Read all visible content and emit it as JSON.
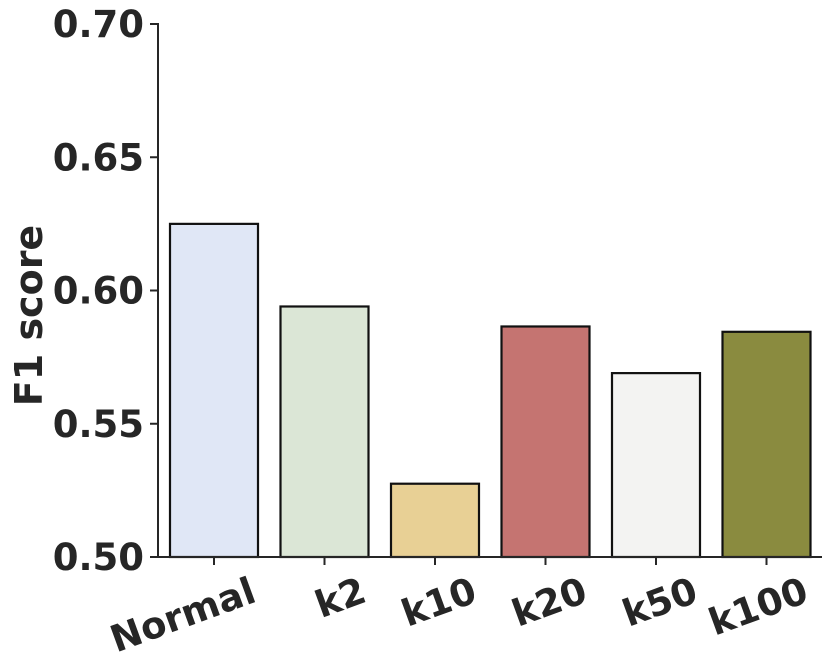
{
  "chart_data": {
    "type": "bar",
    "categories": [
      "Normal",
      "k2",
      "k10",
      "k20",
      "k50",
      "k100"
    ],
    "values": [
      0.625,
      0.594,
      0.5275,
      0.5865,
      0.569,
      0.5845
    ],
    "colors": [
      "#e0e7f6",
      "#dbe6d6",
      "#e8d095",
      "#c57471",
      "#f3f3f2",
      "#8a8b3f"
    ],
    "title": "",
    "xlabel": "",
    "ylabel": "F1 score",
    "ylim": [
      0.5,
      0.7
    ],
    "yticks": [
      "0.50",
      "0.55",
      "0.60",
      "0.65",
      "0.70"
    ],
    "grid": false,
    "legend": "none"
  }
}
